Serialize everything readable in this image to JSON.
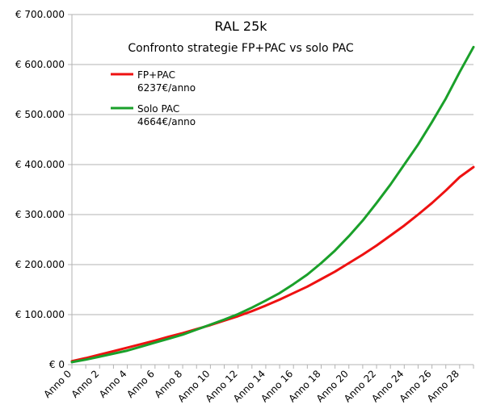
{
  "chart_data": {
    "type": "line",
    "title": "RAL 25k",
    "subtitle": "Confronto strategie FP+PAC vs solo PAC",
    "xlabel": "",
    "ylabel": "",
    "ylim": [
      0,
      700000
    ],
    "y_ticks": [
      {
        "value": 0,
        "label": "€ 0"
      },
      {
        "value": 100000,
        "label": "€ 100.000"
      },
      {
        "value": 200000,
        "label": "€ 200.000"
      },
      {
        "value": 300000,
        "label": "€ 300.000"
      },
      {
        "value": 400000,
        "label": "€ 400.000"
      },
      {
        "value": 500000,
        "label": "€ 500.000"
      },
      {
        "value": 600000,
        "label": "€ 600.000"
      },
      {
        "value": 700000,
        "label": "€ 700.000"
      }
    ],
    "categories": [
      "Anno 0",
      "Anno 1",
      "Anno 2",
      "Anno 3",
      "Anno 4",
      "Anno 5",
      "Anno 6",
      "Anno 7",
      "Anno 8",
      "Anno 9",
      "Anno 10",
      "Anno 11",
      "Anno 12",
      "Anno 13",
      "Anno 14",
      "Anno 15",
      "Anno 16",
      "Anno 17",
      "Anno 18",
      "Anno 19",
      "Anno 20",
      "Anno 21",
      "Anno 22",
      "Anno 23",
      "Anno 24",
      "Anno 25",
      "Anno 26",
      "Anno 27",
      "Anno 28",
      "Anno 29"
    ],
    "x_tick_labels": [
      "Anno 0",
      "Anno 2",
      "Anno 4",
      "Anno 6",
      "Anno 8",
      "Anno 10",
      "Anno 12",
      "Anno 14",
      "Anno 16",
      "Anno 18",
      "Anno 20",
      "Anno 22",
      "Anno 24",
      "Anno 26",
      "Anno 28"
    ],
    "grid": "horizontal",
    "legend_position": "top-left",
    "series": [
      {
        "name": "FP+PAC",
        "note": "6237€/anno",
        "color": "#ee1111",
        "values": [
          7000,
          13000,
          20000,
          27000,
          34000,
          41000,
          48000,
          56000,
          63000,
          71000,
          79000,
          88000,
          97000,
          107000,
          118000,
          130000,
          143000,
          156000,
          171000,
          186000,
          203000,
          220000,
          238000,
          258000,
          278000,
          300000,
          323000,
          348000,
          375000,
          395000
        ]
      },
      {
        "name": "Solo PAC",
        "note": "4664€/anno",
        "color": "#1aa02a",
        "values": [
          5000,
          10000,
          16000,
          22000,
          28000,
          36000,
          44000,
          52000,
          60000,
          70000,
          80000,
          90000,
          101000,
          114000,
          128000,
          143000,
          161000,
          180000,
          203000,
          228000,
          257000,
          288000,
          323000,
          360000,
          400000,
          440000,
          485000,
          532000,
          585000,
          635000
        ]
      }
    ]
  }
}
